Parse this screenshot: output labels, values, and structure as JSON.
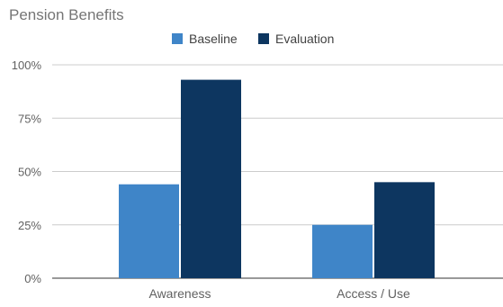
{
  "chart_data": {
    "type": "bar",
    "title": "Pension Benefits",
    "categories": [
      "Awareness",
      "Access / Use"
    ],
    "series": [
      {
        "name": "Baseline",
        "values": [
          44,
          25
        ],
        "color": "#3f85c8"
      },
      {
        "name": "Evaluation",
        "values": [
          93,
          45
        ],
        "color": "#0d3660"
      }
    ],
    "ylim": [
      0,
      100
    ],
    "y_ticks": [
      0,
      25,
      50,
      75,
      100
    ],
    "y_tick_labels": [
      "0%",
      "25%",
      "50%",
      "75%",
      "100%"
    ],
    "xlabel": "",
    "ylabel": "",
    "grid": true,
    "legend_position": "top-center"
  }
}
